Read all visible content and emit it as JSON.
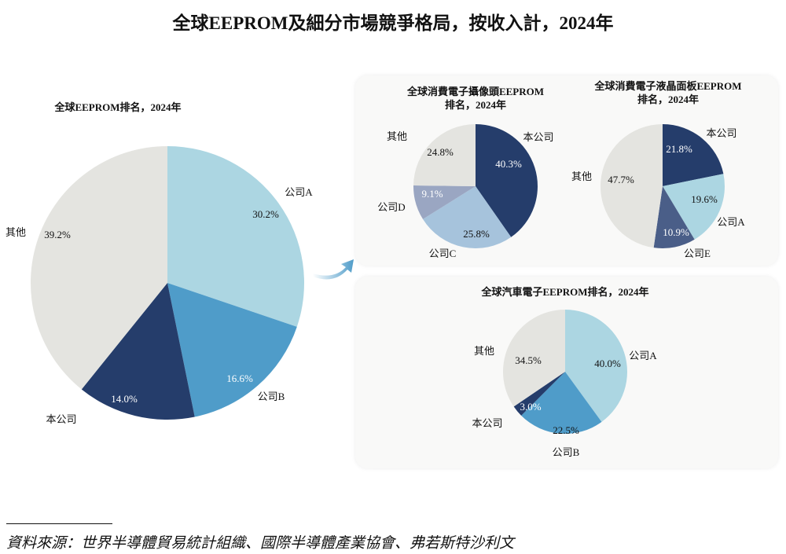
{
  "title": "全球EEPROM及細分市場競爭格局，按收入計，2024年",
  "source": "資料來源：世界半導體貿易統計組織、國際半導體產業協會、弗若斯特沙利文",
  "colors": {
    "navy": "#253d6b",
    "light_blue": "#acd6e2",
    "mid_blue": "#4f9cc9",
    "grey": "#e4e4e0",
    "pale_blue": "#a6c3dc",
    "lavender": "#9aa6c2",
    "slate": "#4a5e88",
    "panel_bg": "#f9f9f8"
  },
  "chart_data": [
    {
      "type": "pie",
      "title": "全球EEPROM排名，2024年",
      "unit": "%",
      "slices": [
        {
          "name": "公司A",
          "value": 30.2,
          "label": "30.2%",
          "color": "#acd6e2"
        },
        {
          "name": "公司B",
          "value": 16.6,
          "label": "16.6%",
          "color": "#4f9cc9"
        },
        {
          "name": "本公司",
          "value": 14.0,
          "label": "14.0%",
          "color": "#253d6b"
        },
        {
          "name": "其他",
          "value": 39.2,
          "label": "39.2%",
          "color": "#e4e4e0"
        }
      ]
    },
    {
      "type": "pie",
      "title": [
        "全球消費電子攝像頭EEPROM",
        "排名，2024年"
      ],
      "unit": "%",
      "slices": [
        {
          "name": "本公司",
          "value": 40.3,
          "label": "40.3%",
          "color": "#253d6b"
        },
        {
          "name": "公司C",
          "value": 25.8,
          "label": "25.8%",
          "color": "#a6c3dc"
        },
        {
          "name": "公司D",
          "value": 9.1,
          "label": "9.1%",
          "color": "#9aa6c2"
        },
        {
          "name": "其他",
          "value": 24.8,
          "label": "24.8%",
          "color": "#e4e4e0"
        }
      ]
    },
    {
      "type": "pie",
      "title": [
        "全球消費電子液晶面板EEPROM",
        "排名，2024年"
      ],
      "unit": "%",
      "slices": [
        {
          "name": "本公司",
          "value": 21.8,
          "label": "21.8%",
          "color": "#253d6b"
        },
        {
          "name": "公司A",
          "value": 19.6,
          "label": "19.6%",
          "color": "#acd6e2"
        },
        {
          "name": "公司E",
          "value": 10.9,
          "label": "10.9%",
          "color": "#4a5e88"
        },
        {
          "name": "其他",
          "value": 47.7,
          "label": "47.7%",
          "color": "#e4e4e0"
        }
      ]
    },
    {
      "type": "pie",
      "title": "全球汽車電子EEPROM排名，2024年",
      "unit": "%",
      "slices": [
        {
          "name": "公司A",
          "value": 40.0,
          "label": "40.0%",
          "color": "#acd6e2"
        },
        {
          "name": "公司B",
          "value": 22.5,
          "label": "22.5%",
          "color": "#4f9cc9"
        },
        {
          "name": "本公司",
          "value": 3.0,
          "label": "3.0%",
          "color": "#253d6b"
        },
        {
          "name": "其他",
          "value": 34.5,
          "label": "34.5%",
          "color": "#e4e4e0"
        }
      ]
    }
  ]
}
